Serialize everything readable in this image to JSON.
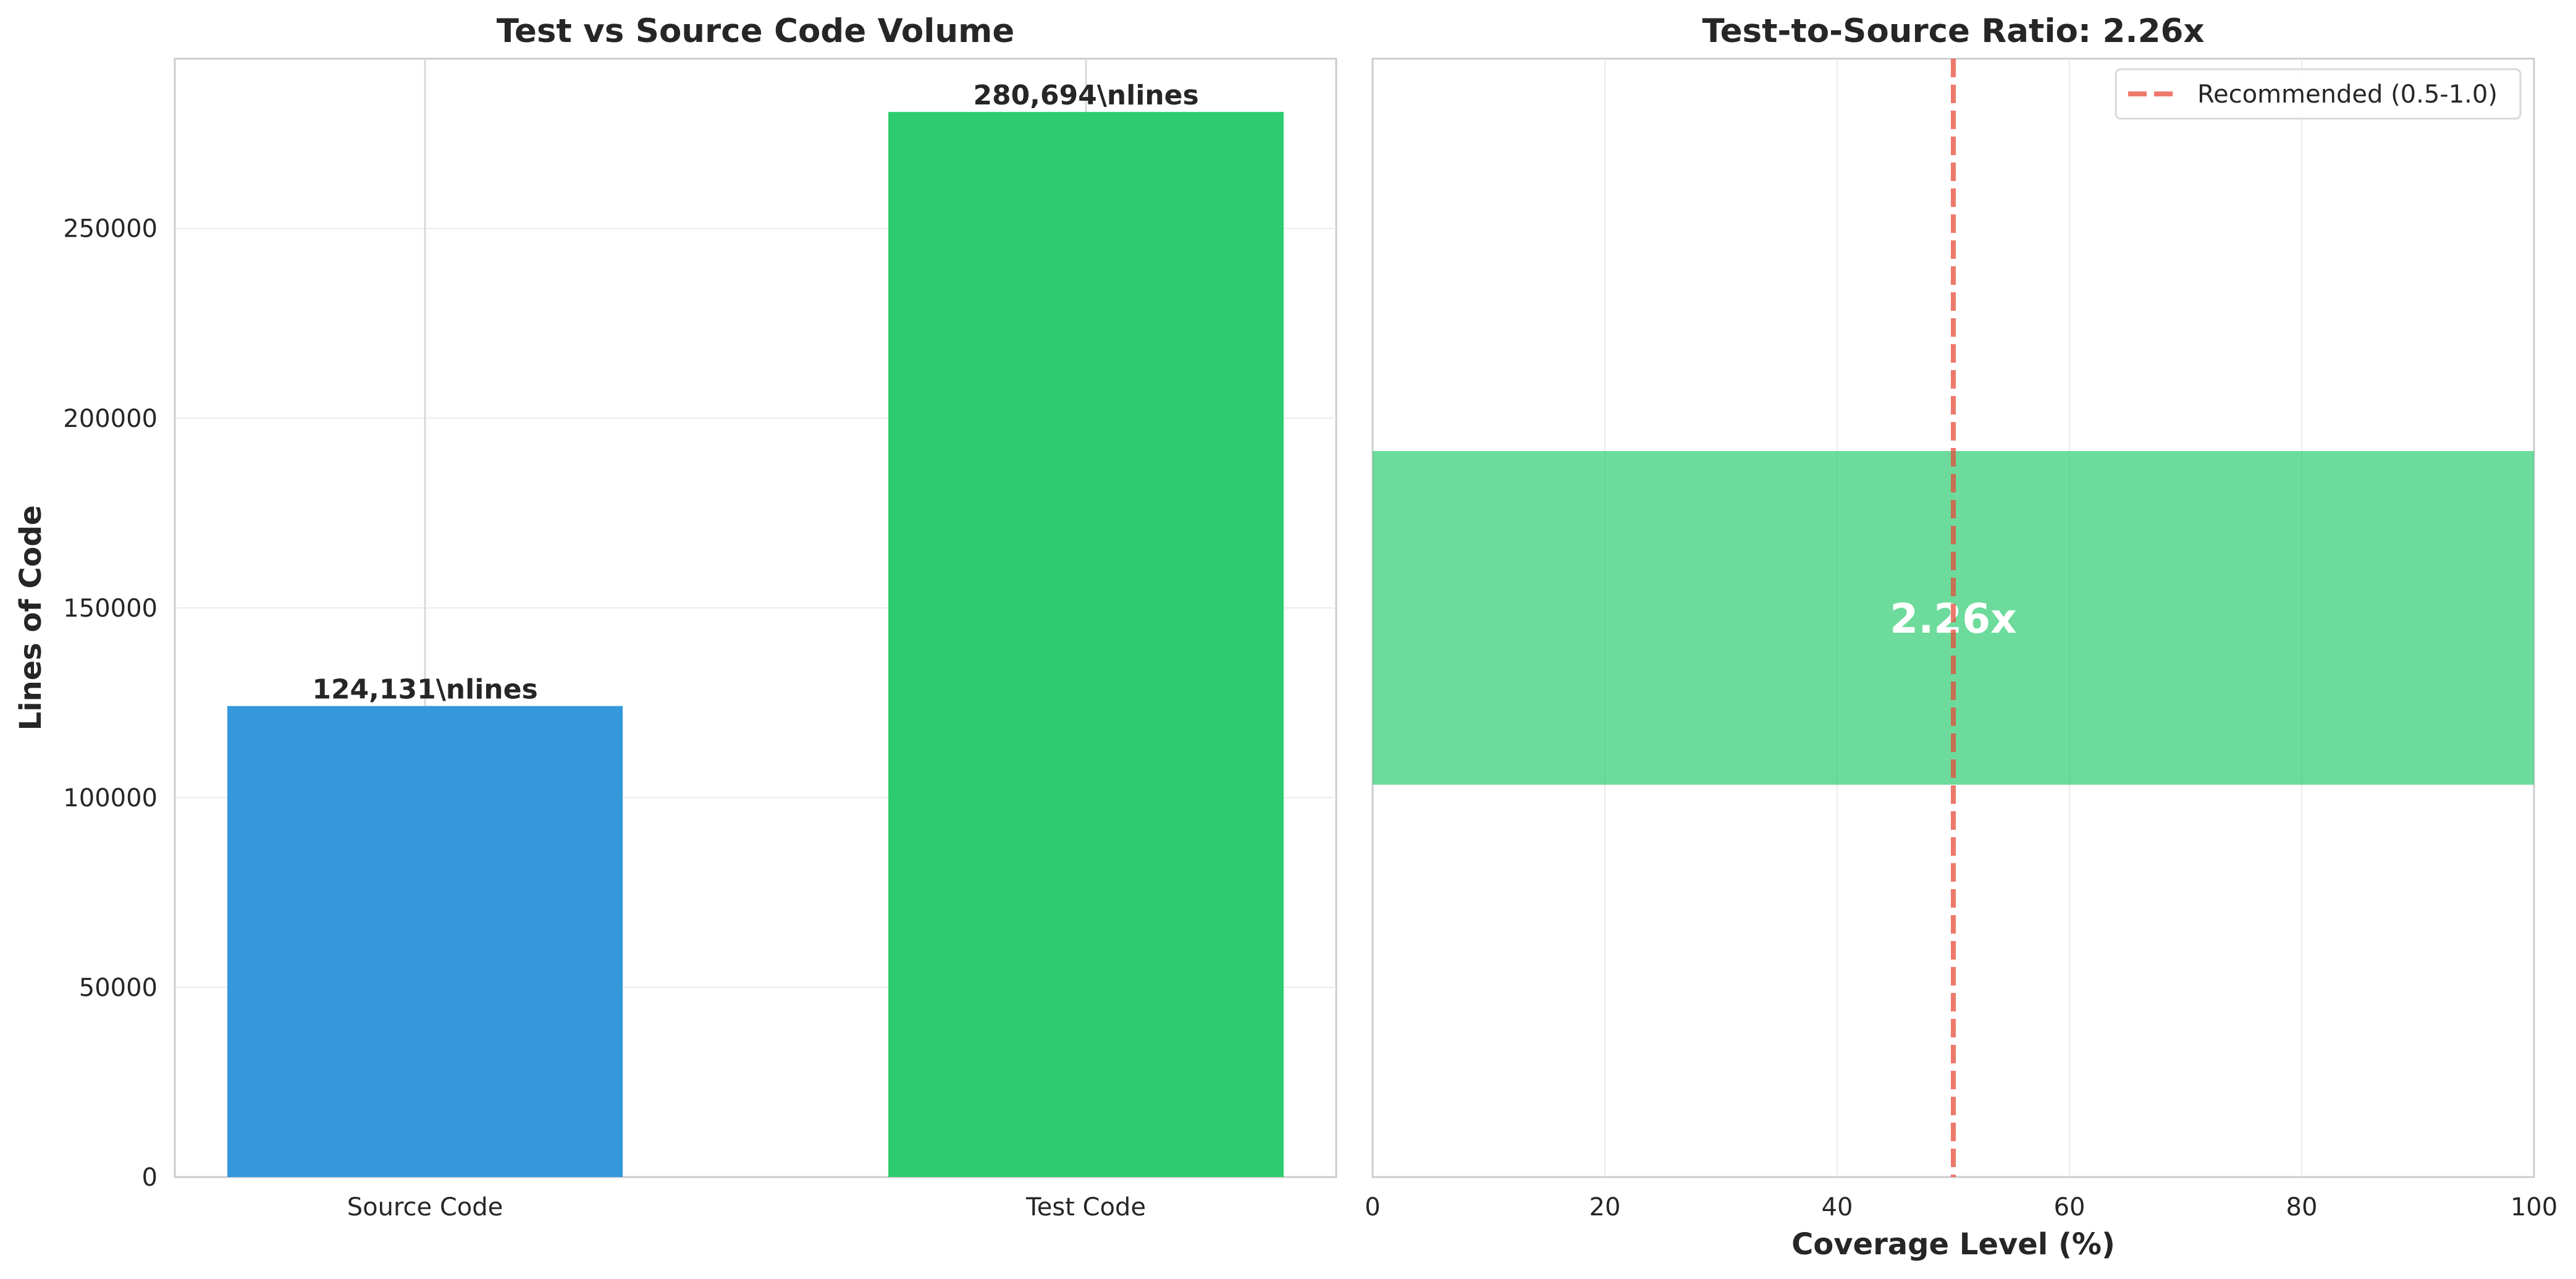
{
  "chart_data": [
    {
      "type": "bar",
      "title": "Test vs Source Code Volume",
      "xlabel": "",
      "ylabel": "Lines of Code",
      "categories": [
        "Source Code",
        "Test Code"
      ],
      "values": [
        124131,
        280694
      ],
      "data_labels": [
        "124,131\\nlines",
        "280,694\\nlines"
      ],
      "colors": [
        "#3498db",
        "#2ecc71"
      ],
      "ylim": [
        0,
        294729
      ],
      "yticks": [
        0,
        50000,
        100000,
        150000,
        200000,
        250000
      ],
      "grid": true
    },
    {
      "type": "bar",
      "orientation": "horizontal",
      "title": "Test-to-Source Ratio: 2.26x",
      "xlabel": "Coverage Level (%)",
      "ylabel": "",
      "values": [
        100
      ],
      "bar_label": "2.26x",
      "color": "#2ecc71",
      "xlim": [
        0,
        100
      ],
      "xticks": [
        0,
        20,
        40,
        60,
        80,
        100
      ],
      "reference_line": {
        "x": 50,
        "label": "Recommended (0.5-1.0)",
        "color": "#e74c3c",
        "style": "dashed"
      },
      "legend_position": "top-right",
      "grid": true
    }
  ]
}
